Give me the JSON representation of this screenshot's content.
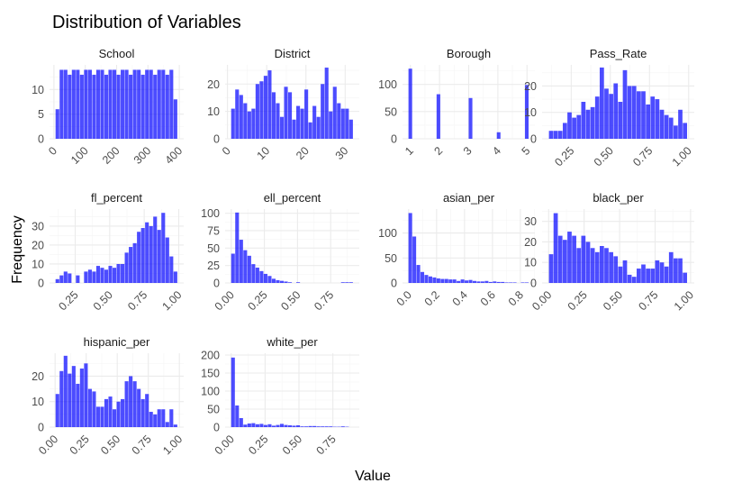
{
  "figure": {
    "title": "Distribution of Variables",
    "xlabel": "Value",
    "ylabel": "Frequency"
  },
  "colors": {
    "bar_fill": "#0000ff",
    "bar_opacity": 0.7,
    "grid": "#ebebeb"
  },
  "chart_data": [
    {
      "type": "bar",
      "title": "School",
      "bins": 30,
      "xlim": [
        -14,
        414
      ],
      "xticks": [
        0,
        100,
        200,
        300,
        400
      ],
      "xtick_labels": [
        "0",
        "100",
        "200",
        "300",
        "400"
      ],
      "ylim": [
        0,
        15
      ],
      "yticks": [
        0,
        5,
        10
      ],
      "ytick_labels": [
        "0",
        "5",
        "10"
      ],
      "values": [
        6,
        14,
        14,
        13,
        14,
        14,
        13,
        14,
        14,
        13,
        14,
        14,
        13,
        14,
        14,
        13,
        14,
        14,
        13,
        14,
        14,
        13,
        14,
        14,
        13,
        14,
        14,
        13,
        14,
        8
      ]
    },
    {
      "type": "bar",
      "title": "District",
      "bins": 30,
      "xlim": [
        -0.6,
        33.6
      ],
      "xticks": [
        0,
        10,
        20,
        30
      ],
      "xtick_labels": [
        "0",
        "10",
        "20",
        "30"
      ],
      "ylim": [
        0,
        27
      ],
      "yticks": [
        0,
        10,
        20
      ],
      "ytick_labels": [
        "0",
        "10",
        "20"
      ],
      "values": [
        11,
        18,
        16,
        13,
        10,
        11,
        20,
        21,
        23,
        25,
        17,
        13,
        8,
        19,
        17,
        7,
        12,
        11,
        18,
        6,
        12,
        8,
        20,
        26,
        10,
        19,
        13,
        11,
        11,
        7
      ]
    },
    {
      "type": "bar",
      "title": "Borough",
      "bins": 30,
      "xlim": [
        0.73,
        5.27
      ],
      "xticks": [
        1,
        2,
        3,
        4,
        5
      ],
      "xtick_labels": [
        "1",
        "2",
        "3",
        "4",
        "5"
      ],
      "ylim": [
        0,
        136
      ],
      "yticks": [
        0,
        50,
        100
      ],
      "ytick_labels": [
        "0",
        "50",
        "100"
      ],
      "values": [
        129,
        0,
        0,
        0,
        0,
        0,
        0,
        82,
        0,
        0,
        0,
        0,
        0,
        0,
        0,
        75,
        0,
        0,
        0,
        0,
        0,
        0,
        12,
        0,
        0,
        0,
        0,
        0,
        0,
        99
      ]
    },
    {
      "type": "bar",
      "title": "Pass_Rate",
      "bins": 30,
      "xlim": [
        0.064,
        1.036
      ],
      "xticks": [
        0.25,
        0.5,
        0.75,
        1.0
      ],
      "xtick_labels": [
        "0.25",
        "0.50",
        "0.75",
        "1.00"
      ],
      "ylim": [
        0,
        28
      ],
      "yticks": [
        0,
        10,
        20
      ],
      "ytick_labels": [
        "0",
        "10",
        "20"
      ],
      "values": [
        3,
        3,
        3,
        6,
        10,
        8,
        9,
        14,
        11,
        12,
        16,
        27,
        19,
        17,
        21,
        14,
        26,
        20,
        20,
        18,
        18,
        13,
        16,
        15,
        11,
        9,
        8,
        5,
        11,
        6
      ]
    },
    {
      "type": "bar",
      "title": "fl_percent",
      "bins": 30,
      "xlim": [
        0.064,
        1.036
      ],
      "xticks": [
        0.25,
        0.5,
        0.75,
        1.0
      ],
      "xtick_labels": [
        "0.25",
        "0.50",
        "0.75",
        "1.00"
      ],
      "ylim": [
        0,
        39
      ],
      "yticks": [
        0,
        10,
        20,
        30
      ],
      "ytick_labels": [
        "0",
        "10",
        "20",
        "30"
      ],
      "values": [
        2,
        4,
        6,
        5,
        0,
        4,
        0,
        6,
        7,
        6,
        9,
        8,
        7,
        9,
        8,
        10,
        10,
        16,
        19,
        21,
        27,
        29,
        32,
        30,
        35,
        28,
        37,
        24,
        14,
        6
      ]
    },
    {
      "type": "bar",
      "title": "ell_percent",
      "bins": 30,
      "xlim": [
        -0.046,
        0.966
      ],
      "xticks": [
        0,
        0.25,
        0.5,
        0.75
      ],
      "xtick_labels": [
        "0.00",
        "0.25",
        "0.50",
        "0.75"
      ],
      "ylim": [
        0,
        106
      ],
      "yticks": [
        0,
        25,
        50,
        75,
        100
      ],
      "ytick_labels": [
        "0",
        "25",
        "50",
        "75",
        "100"
      ],
      "values": [
        42,
        101,
        62,
        47,
        39,
        27,
        22,
        17,
        13,
        10,
        6,
        4,
        3,
        2,
        1,
        0,
        1,
        0,
        0,
        0,
        0,
        0,
        0,
        0,
        0,
        0,
        0,
        1,
        1,
        1
      ]
    },
    {
      "type": "bar",
      "title": "asian_per",
      "bins": 30,
      "xlim": [
        -0.044,
        0.904
      ],
      "xticks": [
        0,
        0.2,
        0.4,
        0.6,
        0.8
      ],
      "xtick_labels": [
        "0.0",
        "0.2",
        "0.4",
        "0.6",
        "0.8"
      ],
      "ylim": [
        0,
        148
      ],
      "yticks": [
        0,
        50,
        100
      ],
      "ytick_labels": [
        "0",
        "50",
        "100"
      ],
      "values": [
        140,
        93,
        36,
        22,
        16,
        13,
        11,
        9,
        8,
        8,
        7,
        7,
        4,
        7,
        5,
        6,
        4,
        3,
        3,
        4,
        2,
        3,
        2,
        2,
        1,
        1,
        1,
        0,
        1,
        1
      ]
    },
    {
      "type": "bar",
      "title": "black_per",
      "bins": 30,
      "xlim": [
        -0.046,
        1.026
      ],
      "xticks": [
        0,
        0.25,
        0.5,
        0.75,
        1.0
      ],
      "xtick_labels": [
        "0.00",
        "0.25",
        "0.50",
        "0.75",
        "1.00"
      ],
      "ylim": [
        0,
        36
      ],
      "yticks": [
        0,
        10,
        20,
        30
      ],
      "ytick_labels": [
        "0",
        "10",
        "20",
        "30"
      ],
      "values": [
        14,
        34,
        23,
        21,
        25,
        23,
        17,
        23,
        20,
        17,
        15,
        18,
        17,
        15,
        13,
        8,
        11,
        4,
        3,
        7,
        9,
        7,
        7,
        11,
        10,
        8,
        15,
        12,
        12,
        5
      ]
    },
    {
      "type": "bar",
      "title": "hispanic_per",
      "bins": 30,
      "xlim": [
        -0.045,
        1.035
      ],
      "xticks": [
        0,
        0.25,
        0.5,
        0.75,
        1.0
      ],
      "xtick_labels": [
        "0.00",
        "0.25",
        "0.50",
        "0.75",
        "1.00"
      ],
      "ylim": [
        0,
        29
      ],
      "yticks": [
        0,
        10,
        20
      ],
      "ytick_labels": [
        "0",
        "10",
        "20"
      ],
      "values": [
        13,
        22,
        28,
        21,
        24,
        17,
        23,
        25,
        15,
        14,
        8,
        8,
        11,
        12,
        7,
        10,
        11,
        18,
        20,
        18,
        15,
        11,
        13,
        6,
        5,
        7,
        7,
        2,
        7,
        1
      ]
    },
    {
      "type": "bar",
      "title": "white_per",
      "bins": 30,
      "xlim": [
        -0.045,
        0.945
      ],
      "xticks": [
        0,
        0.25,
        0.5,
        0.75
      ],
      "xtick_labels": [
        "0.00",
        "0.25",
        "0.50",
        "0.75"
      ],
      "ylim": [
        0,
        205
      ],
      "yticks": [
        0,
        50,
        100,
        150,
        200
      ],
      "ytick_labels": [
        "0",
        "50",
        "100",
        "150",
        "200"
      ],
      "values": [
        193,
        60,
        25,
        7,
        10,
        11,
        8,
        9,
        6,
        8,
        4,
        6,
        9,
        6,
        5,
        4,
        5,
        2,
        2,
        3,
        3,
        2,
        2,
        2,
        2,
        1,
        1,
        2,
        1,
        0
      ]
    }
  ]
}
